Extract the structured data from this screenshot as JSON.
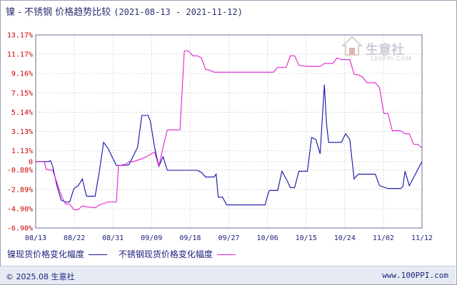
{
  "title": {
    "main": "镍 - 不锈钢 价格趋势比较",
    "range": "(2021-08-13 - 2021-11-12)"
  },
  "watermark": {
    "text": "生意社",
    "sub": "100PPI.COM"
  },
  "legend": [
    {
      "label": "镍现货价格变化幅度",
      "color": "#1010a8"
    },
    {
      "label": "不锈钢现货价格变化幅度",
      "color": "#e020d0"
    }
  ],
  "footer": {
    "left": "© 2025.08 生意社",
    "right": "www.100PPI.com"
  },
  "chart_data": {
    "type": "line",
    "x_ticks": [
      "08/13",
      "08/22",
      "08/31",
      "09/09",
      "09/18",
      "09/27",
      "10/06",
      "10/15",
      "10/24",
      "11/02",
      "11/12"
    ],
    "y_ticks": [
      13.17,
      11.17,
      9.16,
      7.15,
      5.14,
      3.13,
      1.13,
      0,
      -0.88,
      -2.89,
      -4.9,
      -6.9
    ],
    "y_tick_labels": [
      "13.17%",
      "11.17%",
      "9.16%",
      "7.15%",
      "5.14%",
      "3.13%",
      "1.13%",
      "0",
      "-0.88%",
      "-2.89%",
      "-4.90%",
      "-6.90%"
    ],
    "ylim": [
      -6.9,
      13.17
    ],
    "x_range_days": [
      0,
      91
    ],
    "grid": true,
    "series": [
      {
        "name": "镍现货价格变化幅度",
        "color": "#1010a8",
        "points": [
          [
            0,
            0
          ],
          [
            3,
            0
          ],
          [
            3.5,
            0.1
          ],
          [
            4,
            -0.5
          ],
          [
            5,
            -2.5
          ],
          [
            6,
            -4.0
          ],
          [
            7,
            -4.2
          ],
          [
            8,
            -4.2
          ],
          [
            9,
            -2.8
          ],
          [
            10,
            -2.5
          ],
          [
            11,
            -1.8
          ],
          [
            11.5,
            -2.8
          ],
          [
            12,
            -3.6
          ],
          [
            14,
            -3.6
          ],
          [
            15,
            -1.0
          ],
          [
            16,
            2.0
          ],
          [
            17,
            1.4
          ],
          [
            18,
            0.5
          ],
          [
            19,
            -0.4
          ],
          [
            20,
            -0.4
          ],
          [
            21,
            -0.3
          ],
          [
            21.5,
            -0.4
          ],
          [
            22,
            -0.3
          ],
          [
            23,
            0.6
          ],
          [
            24,
            1.5
          ],
          [
            25,
            4.8
          ],
          [
            26.5,
            4.8
          ],
          [
            27,
            4.2
          ],
          [
            28,
            1.5
          ],
          [
            29,
            -0.5
          ],
          [
            30,
            0.5
          ],
          [
            31,
            -0.9
          ],
          [
            38,
            -0.9
          ],
          [
            39,
            -1.1
          ],
          [
            40,
            -1.6
          ],
          [
            42,
            -1.6
          ],
          [
            42.5,
            -1.3
          ],
          [
            43,
            -3.7
          ],
          [
            44,
            -3.7
          ],
          [
            45,
            -4.5
          ],
          [
            54,
            -4.5
          ],
          [
            55,
            -3.0
          ],
          [
            57,
            -3.0
          ],
          [
            58,
            -1.0
          ],
          [
            59,
            -1.8
          ],
          [
            60,
            -2.7
          ],
          [
            61,
            -2.7
          ],
          [
            62,
            -1.0
          ],
          [
            64,
            -1.0
          ],
          [
            65,
            2.5
          ],
          [
            66,
            2.3
          ],
          [
            67,
            0.8
          ],
          [
            68,
            8.0
          ],
          [
            68.5,
            4.0
          ],
          [
            69,
            2.0
          ],
          [
            72,
            2.0
          ],
          [
            73,
            2.9
          ],
          [
            74,
            2.3
          ],
          [
            75,
            -1.8
          ],
          [
            76,
            -1.3
          ],
          [
            79,
            -1.3
          ],
          [
            80,
            -1.3
          ],
          [
            81,
            -2.5
          ],
          [
            83,
            -2.8
          ],
          [
            86,
            -2.8
          ],
          [
            86.5,
            -2.6
          ],
          [
            87,
            -1.0
          ],
          [
            88,
            -2.5
          ],
          [
            91,
            0
          ]
        ]
      },
      {
        "name": "不锈钢现货价格变化幅度",
        "color": "#e020d0",
        "points": [
          [
            0,
            0
          ],
          [
            2,
            0
          ],
          [
            2.5,
            -0.8
          ],
          [
            4,
            -0.9
          ],
          [
            6,
            -3.5
          ],
          [
            7,
            -4.4
          ],
          [
            8,
            -4.4
          ],
          [
            9,
            -5.0
          ],
          [
            10,
            -5.0
          ],
          [
            11,
            -4.6
          ],
          [
            12,
            -4.7
          ],
          [
            14,
            -4.8
          ],
          [
            15,
            -4.5
          ],
          [
            17,
            -4.2
          ],
          [
            18,
            -4.2
          ],
          [
            19,
            -4.2
          ],
          [
            19.5,
            -0.4
          ],
          [
            21,
            -0.4
          ],
          [
            22,
            0
          ],
          [
            23,
            0
          ],
          [
            25,
            0.3
          ],
          [
            26,
            0.5
          ],
          [
            28,
            1.0
          ],
          [
            29,
            -0.5
          ],
          [
            30,
            1.5
          ],
          [
            31,
            3.3
          ],
          [
            34,
            3.3
          ],
          [
            35,
            11.5
          ],
          [
            36,
            11.5
          ],
          [
            37,
            11.0
          ],
          [
            38,
            11.0
          ],
          [
            39,
            10.8
          ],
          [
            40,
            9.6
          ],
          [
            41,
            9.5
          ],
          [
            42,
            9.3
          ],
          [
            43,
            9.3
          ],
          [
            56,
            9.3
          ],
          [
            57,
            9.8
          ],
          [
            59,
            9.8
          ],
          [
            60,
            11.0
          ],
          [
            61,
            11.0
          ],
          [
            62,
            10.0
          ],
          [
            64,
            9.9
          ],
          [
            67,
            9.9
          ],
          [
            68,
            10.2
          ],
          [
            70,
            10.2
          ],
          [
            71,
            10.8
          ],
          [
            72,
            10.6
          ],
          [
            74,
            10.6
          ],
          [
            75,
            9.1
          ],
          [
            76,
            9.0
          ],
          [
            77,
            8.8
          ],
          [
            78,
            8.2
          ],
          [
            80,
            8.2
          ],
          [
            81,
            7.7
          ],
          [
            82,
            5.0
          ],
          [
            83,
            5.0
          ],
          [
            84,
            3.2
          ],
          [
            86,
            3.2
          ],
          [
            87,
            2.9
          ],
          [
            88,
            2.9
          ],
          [
            89,
            1.8
          ],
          [
            90,
            1.8
          ],
          [
            91,
            1.4
          ]
        ]
      }
    ]
  }
}
